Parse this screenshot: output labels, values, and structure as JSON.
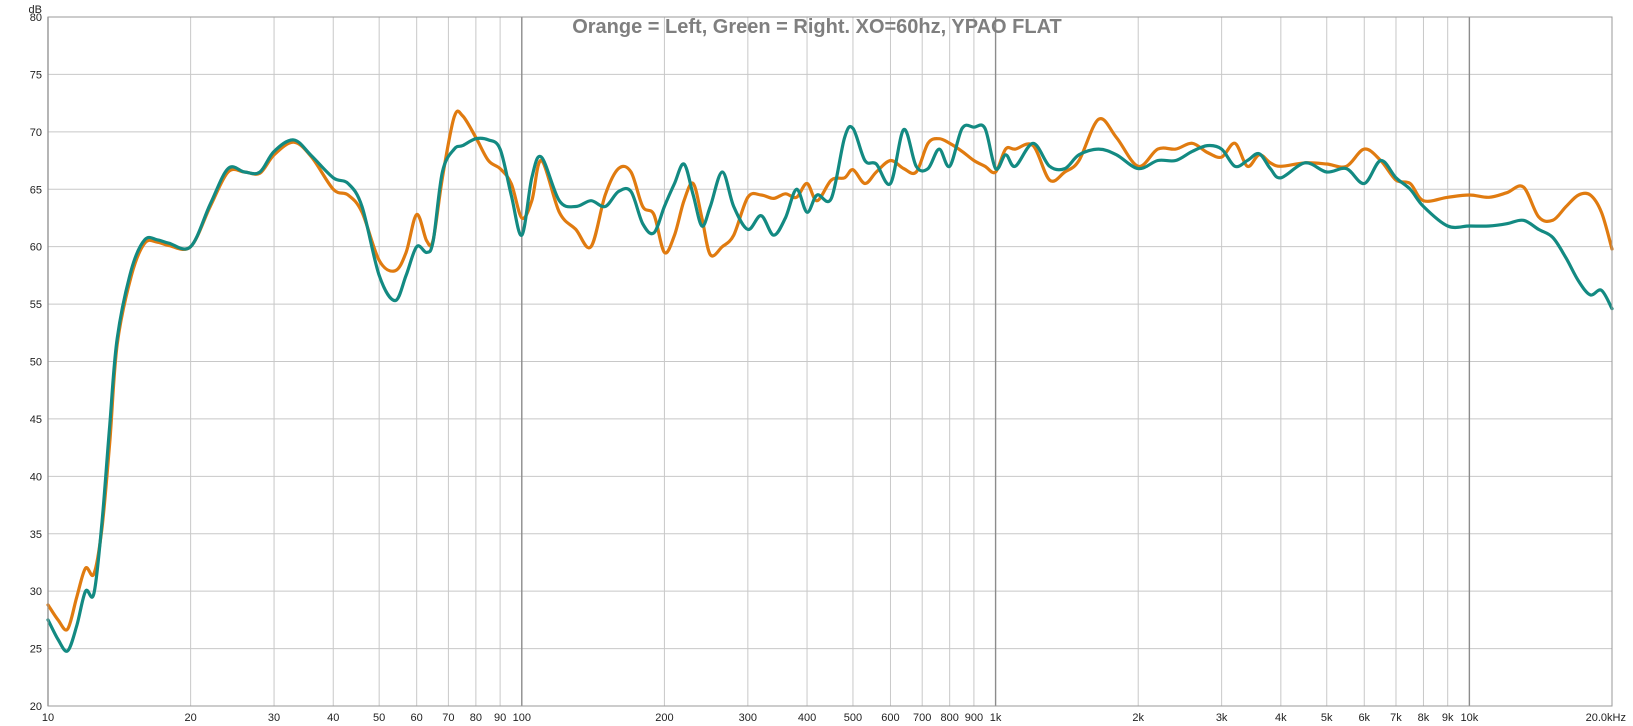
{
  "chart_data": {
    "type": "line",
    "title": "Orange = Left, Green = Right. XO=60hz, YPAO FLAT",
    "ylabel": "dB",
    "x_unit_label": "20.0kHz",
    "x_scale": "log",
    "xlim": [
      10,
      20000
    ],
    "ylim": [
      20,
      80
    ],
    "grid": true,
    "y_ticks": [
      20,
      25,
      30,
      35,
      40,
      45,
      50,
      55,
      60,
      65,
      70,
      75,
      80
    ],
    "y_tick_labels": [
      "20",
      "25",
      "30",
      "35",
      "40",
      "45",
      "50",
      "55",
      "60",
      "65",
      "70",
      "75",
      "80"
    ],
    "x_ticks": [
      10,
      20,
      30,
      40,
      50,
      60,
      70,
      80,
      90,
      100,
      200,
      300,
      400,
      500,
      600,
      700,
      800,
      900,
      1000,
      2000,
      3000,
      4000,
      5000,
      6000,
      7000,
      8000,
      9000,
      10000
    ],
    "x_tick_labels": [
      "10",
      "20",
      "30",
      "40",
      "50",
      "60",
      "70",
      "80",
      "90",
      "100",
      "200",
      "300",
      "400",
      "500",
      "600",
      "700",
      "800",
      "900",
      "1k",
      "2k",
      "3k",
      "4k",
      "5k",
      "6k",
      "7k",
      "8k",
      "9k",
      "10k"
    ],
    "series": [
      {
        "color": "#e07b10",
        "x": [
          10,
          10.5,
          11,
          11.5,
          12,
          12.5,
          13,
          13.5,
          14,
          15,
          16,
          17,
          18,
          20,
          22,
          24,
          26,
          28,
          30,
          33,
          36,
          40,
          43,
          46,
          50,
          54,
          57,
          60,
          63,
          65,
          68,
          72,
          75,
          80,
          85,
          90,
          95,
          100,
          105,
          110,
          120,
          130,
          140,
          150,
          160,
          170,
          180,
          190,
          200,
          210,
          220,
          230,
          240,
          250,
          265,
          280,
          300,
          320,
          340,
          360,
          380,
          400,
          420,
          450,
          480,
          500,
          530,
          560,
          600,
          640,
          680,
          720,
          760,
          800,
          850,
          900,
          950,
          1000,
          1050,
          1100,
          1200,
          1300,
          1400,
          1500,
          1650,
          1800,
          2000,
          2200,
          2400,
          2600,
          2800,
          3000,
          3200,
          3400,
          3600,
          3800,
          4000,
          4500,
          5000,
          5500,
          6000,
          6500,
          7000,
          7500,
          8000,
          9000,
          10000,
          11000,
          12000,
          13000,
          14000,
          15000,
          16000,
          17000,
          18000,
          19000,
          20000
        ],
        "y": [
          28.8,
          27.5,
          26.7,
          29.5,
          32.0,
          31.5,
          35.5,
          43.0,
          51.5,
          57.5,
          60.3,
          60.4,
          60.1,
          60.0,
          63.5,
          66.5,
          66.5,
          66.4,
          68.0,
          69.1,
          67.8,
          65.0,
          64.5,
          63.0,
          58.8,
          57.9,
          59.5,
          62.8,
          60.5,
          60.6,
          66.0,
          71.3,
          71.4,
          69.5,
          67.5,
          66.8,
          65.5,
          62.5,
          64.0,
          67.5,
          63.0,
          61.5,
          60.0,
          64.5,
          66.8,
          66.5,
          63.5,
          62.8,
          59.5,
          61.0,
          64.0,
          65.5,
          62.5,
          59.3,
          60.0,
          61.0,
          64.3,
          64.5,
          64.2,
          64.6,
          64.3,
          65.5,
          64.0,
          65.8,
          66.0,
          66.7,
          65.5,
          66.5,
          67.5,
          66.8,
          66.5,
          69.0,
          69.4,
          69.0,
          68.3,
          67.5,
          67.0,
          66.5,
          68.5,
          68.5,
          68.8,
          65.8,
          66.5,
          67.5,
          71.1,
          69.5,
          67.0,
          68.5,
          68.5,
          69.0,
          68.2,
          67.8,
          69.0,
          67.0,
          68.0,
          67.3,
          67.0,
          67.3,
          67.2,
          67.0,
          68.5,
          67.5,
          65.8,
          65.5,
          64.0,
          64.3,
          64.5,
          64.3,
          64.7,
          65.2,
          62.6,
          62.3,
          63.5,
          64.5,
          64.5,
          63.0,
          59.8
        ]
      },
      {
        "color": "#138a82",
        "x": [
          10,
          10.5,
          11,
          11.5,
          12,
          12.5,
          13,
          13.5,
          14,
          15,
          16,
          17,
          18,
          20,
          22,
          24,
          26,
          28,
          30,
          33,
          36,
          40,
          43,
          46,
          50,
          54,
          57,
          60,
          63,
          65,
          68,
          72,
          75,
          80,
          85,
          90,
          95,
          100,
          105,
          110,
          120,
          130,
          140,
          150,
          160,
          170,
          180,
          190,
          200,
          210,
          220,
          230,
          240,
          250,
          265,
          280,
          300,
          320,
          340,
          360,
          380,
          400,
          420,
          450,
          480,
          500,
          530,
          560,
          600,
          640,
          680,
          720,
          760,
          800,
          850,
          900,
          950,
          1000,
          1050,
          1100,
          1200,
          1300,
          1400,
          1500,
          1650,
          1800,
          2000,
          2200,
          2400,
          2600,
          2800,
          3000,
          3200,
          3400,
          3600,
          3800,
          4000,
          4500,
          5000,
          5500,
          6000,
          6500,
          7000,
          7500,
          8000,
          9000,
          10000,
          11000,
          12000,
          13000,
          14000,
          15000,
          16000,
          17000,
          18000,
          19000,
          20000
        ],
        "y": [
          27.5,
          25.8,
          24.8,
          27.0,
          30.0,
          29.8,
          36.0,
          44.5,
          52.0,
          58.0,
          60.6,
          60.6,
          60.3,
          60.0,
          63.7,
          66.8,
          66.5,
          66.5,
          68.3,
          69.3,
          67.9,
          66.0,
          65.5,
          63.5,
          57.5,
          55.3,
          57.5,
          60.0,
          59.5,
          60.5,
          66.5,
          68.5,
          68.8,
          69.4,
          69.3,
          68.5,
          64.5,
          61.0,
          66.0,
          67.8,
          64.0,
          63.5,
          64.0,
          63.5,
          64.8,
          64.8,
          62.0,
          61.2,
          63.5,
          65.5,
          67.2,
          64.5,
          61.8,
          63.5,
          66.5,
          63.5,
          61.5,
          62.7,
          61.0,
          62.5,
          65.0,
          63.0,
          64.5,
          64.2,
          69.5,
          70.3,
          67.5,
          67.2,
          65.5,
          70.2,
          67.0,
          66.8,
          68.5,
          67.0,
          70.3,
          70.4,
          70.3,
          66.8,
          68.0,
          67.0,
          69.0,
          67.0,
          66.8,
          68.0,
          68.5,
          68.0,
          66.8,
          67.5,
          67.5,
          68.3,
          68.8,
          68.5,
          67.0,
          67.5,
          68.1,
          66.8,
          66.0,
          67.3,
          66.5,
          66.8,
          65.5,
          67.5,
          66.0,
          65.0,
          63.5,
          61.8,
          61.8,
          61.8,
          62.0,
          62.3,
          61.5,
          60.8,
          59.0,
          57.0,
          55.8,
          56.2,
          54.6
        ]
      }
    ]
  }
}
